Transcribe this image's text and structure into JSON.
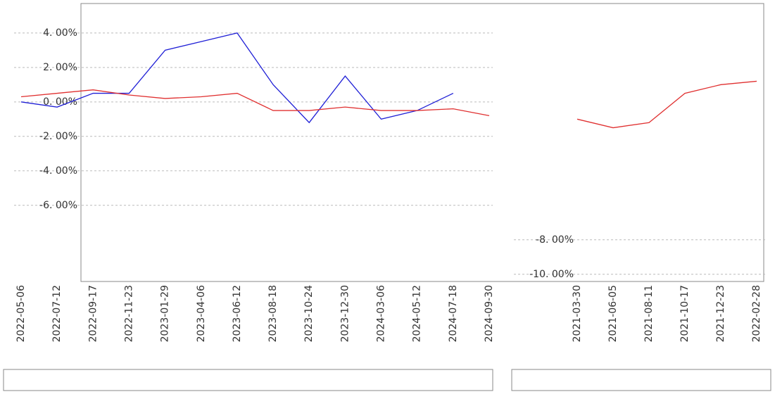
{
  "chart_data": [
    {
      "type": "line",
      "categories": [
        "2022-05-06",
        "2022-07-12",
        "2022-09-17",
        "2022-11-23",
        "2023-01-29",
        "2023-04-06",
        "2023-06-12",
        "2023-08-18",
        "2023-10-24",
        "2023-12-30",
        "2024-03-06",
        "2024-05-12",
        "2024-07-18",
        "2024-09-30"
      ],
      "series": [
        {
          "color": "#1f1fd6",
          "values": [
            0,
            -0.3,
            0.5,
            0.5,
            3,
            3.5,
            4,
            1,
            -1.2,
            1.5,
            -1,
            -0.5,
            0.5,
            null
          ]
        },
        {
          "color": "#e03030",
          "values": [
            0.3,
            0.5,
            0.7,
            0.4,
            0.2,
            0.3,
            0.5,
            -0.5,
            -0.5,
            -0.3,
            -0.5,
            -0.5,
            -0.4,
            -0.8
          ]
        }
      ],
      "ylim": [
        -10.5,
        5.3
      ],
      "yticks": [
        {
          "value": 4,
          "label": "4. 00%"
        },
        {
          "value": 2,
          "label": "2. 00%"
        },
        {
          "value": 0,
          "label": "0. 00%"
        },
        {
          "value": -2,
          "label": "-2. 00%"
        },
        {
          "value": -4,
          "label": "-4. 00%"
        },
        {
          "value": -6,
          "label": "-6. 00%"
        }
      ],
      "grid": true
    },
    {
      "type": "line",
      "categories": [
        "2021-03-30",
        "2021-06-05",
        "2021-08-11",
        "2021-10-17",
        "2021-12-23",
        "2022-02-28"
      ],
      "series": [
        {
          "color": "#e03030",
          "values": [
            -1,
            -1.5,
            -1.2,
            0.5,
            1,
            1.2
          ]
        }
      ],
      "ylim": [
        -10.5,
        5.3
      ],
      "yticks": [
        {
          "value": -8,
          "label": "-8. 00%"
        },
        {
          "value": -10,
          "label": "-10. 00%"
        }
      ],
      "grid": true
    }
  ]
}
